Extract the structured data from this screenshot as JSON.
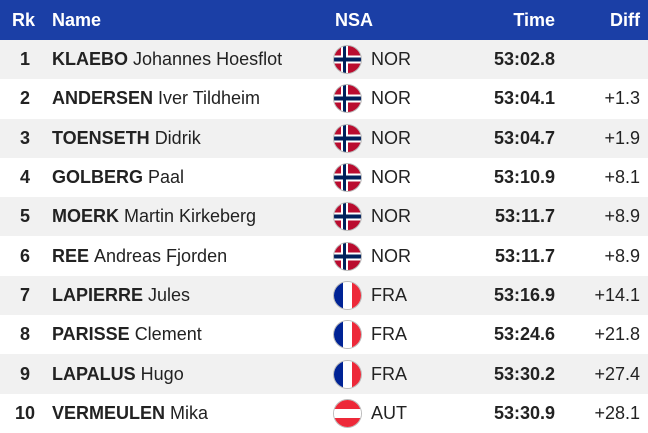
{
  "table": {
    "header": {
      "rank": "Rk",
      "name": "Name",
      "nsa": "NSA",
      "time": "Time",
      "diff": "Diff"
    },
    "rows": [
      {
        "rank": "1",
        "surname": "KLAEBO",
        "given": "Johannes Hoesflot",
        "nsa": "NOR",
        "time": "53:02.8",
        "diff": null
      },
      {
        "rank": "2",
        "surname": "ANDERSEN",
        "given": "Iver Tildheim",
        "nsa": "NOR",
        "time": "53:04.1",
        "diff": "+1.3"
      },
      {
        "rank": "3",
        "surname": "TOENSETH",
        "given": "Didrik",
        "nsa": "NOR",
        "time": "53:04.7",
        "diff": "+1.9"
      },
      {
        "rank": "4",
        "surname": "GOLBERG",
        "given": "Paal",
        "nsa": "NOR",
        "time": "53:10.9",
        "diff": "+8.1"
      },
      {
        "rank": "5",
        "surname": "MOERK",
        "given": "Martin Kirkeberg",
        "nsa": "NOR",
        "time": "53:11.7",
        "diff": "+8.9"
      },
      {
        "rank": "6",
        "surname": "REE",
        "given": "Andreas Fjorden",
        "nsa": "NOR",
        "time": "53:11.7",
        "diff": "+8.9"
      },
      {
        "rank": "7",
        "surname": "LAPIERRE",
        "given": "Jules",
        "nsa": "FRA",
        "time": "53:16.9",
        "diff": "+14.1"
      },
      {
        "rank": "8",
        "surname": "PARISSE",
        "given": "Clement",
        "nsa": "FRA",
        "time": "53:24.6",
        "diff": "+21.8"
      },
      {
        "rank": "9",
        "surname": "LAPALUS",
        "given": "Hugo",
        "nsa": "FRA",
        "time": "53:30.2",
        "diff": "+27.4"
      },
      {
        "rank": "10",
        "surname": "VERMEULEN",
        "given": "Mika",
        "nsa": "AUT",
        "time": "53:30.9",
        "diff": "+28.1"
      }
    ]
  }
}
